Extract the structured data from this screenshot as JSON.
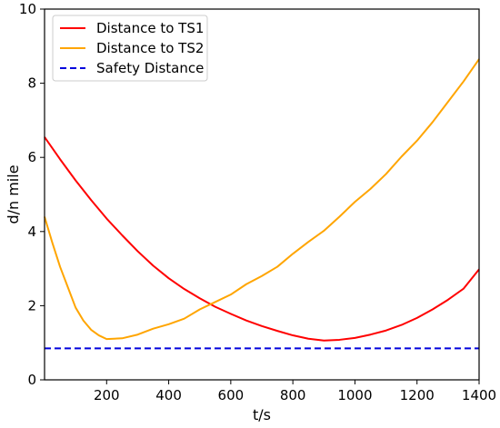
{
  "chart_data": {
    "type": "line",
    "xlabel": "t/s",
    "ylabel": "d/n mile",
    "xlim": [
      0,
      1400
    ],
    "ylim": [
      0,
      10
    ],
    "xticks": [
      200,
      400,
      600,
      800,
      1000,
      1200,
      1400
    ],
    "yticks": [
      0,
      2,
      4,
      6,
      8,
      10
    ],
    "grid": false,
    "legend_position": "top-left",
    "series": [
      {
        "name": "Distance to TS1",
        "color": "#ff0000",
        "style": "solid",
        "x": [
          0,
          50,
          100,
          150,
          200,
          250,
          300,
          350,
          400,
          450,
          500,
          550,
          600,
          650,
          700,
          750,
          800,
          850,
          900,
          950,
          1000,
          1050,
          1100,
          1150,
          1200,
          1250,
          1300,
          1350,
          1400
        ],
        "y": [
          6.55,
          5.95,
          5.38,
          4.85,
          4.35,
          3.9,
          3.47,
          3.08,
          2.74,
          2.45,
          2.2,
          1.97,
          1.78,
          1.6,
          1.45,
          1.32,
          1.2,
          1.11,
          1.06,
          1.08,
          1.13,
          1.22,
          1.33,
          1.48,
          1.67,
          1.9,
          2.16,
          2.46,
          2.98
        ]
      },
      {
        "name": "Distance to TS2",
        "color": "#ffa500",
        "style": "solid",
        "x": [
          0,
          25,
          50,
          75,
          100,
          125,
          150,
          175,
          200,
          250,
          300,
          350,
          400,
          450,
          500,
          550,
          600,
          650,
          700,
          750,
          800,
          850,
          900,
          950,
          1000,
          1050,
          1100,
          1150,
          1200,
          1250,
          1300,
          1350,
          1400
        ],
        "y": [
          4.4,
          3.7,
          3.05,
          2.5,
          1.95,
          1.6,
          1.35,
          1.2,
          1.1,
          1.12,
          1.22,
          1.38,
          1.5,
          1.65,
          1.9,
          2.1,
          2.3,
          2.58,
          2.8,
          3.05,
          3.4,
          3.72,
          4.02,
          4.4,
          4.8,
          5.15,
          5.55,
          6.02,
          6.45,
          6.95,
          7.5,
          8.05,
          8.65
        ]
      },
      {
        "name": "Safety Distance",
        "color": "#0000dd",
        "style": "dashed",
        "x": [
          0,
          1400
        ],
        "y": [
          0.85,
          0.85
        ]
      }
    ]
  }
}
